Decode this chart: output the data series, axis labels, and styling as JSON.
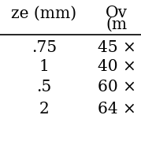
{
  "col1_header": "ze (mm)",
  "col2_header_line1": "Ov",
  "col2_header_line2": "(m",
  "rows": [
    [
      ".75",
      "45 ×"
    ],
    [
      "1",
      "40 ×"
    ],
    [
      ".5",
      "60 ×"
    ],
    [
      "2",
      "64 ×"
    ]
  ],
  "bg_color": "#ffffff",
  "text_color": "#000000",
  "font_size": 14.5,
  "header_font_size": 14.5,
  "fig_width": 1.79,
  "fig_height": 1.79,
  "dpi": 100
}
